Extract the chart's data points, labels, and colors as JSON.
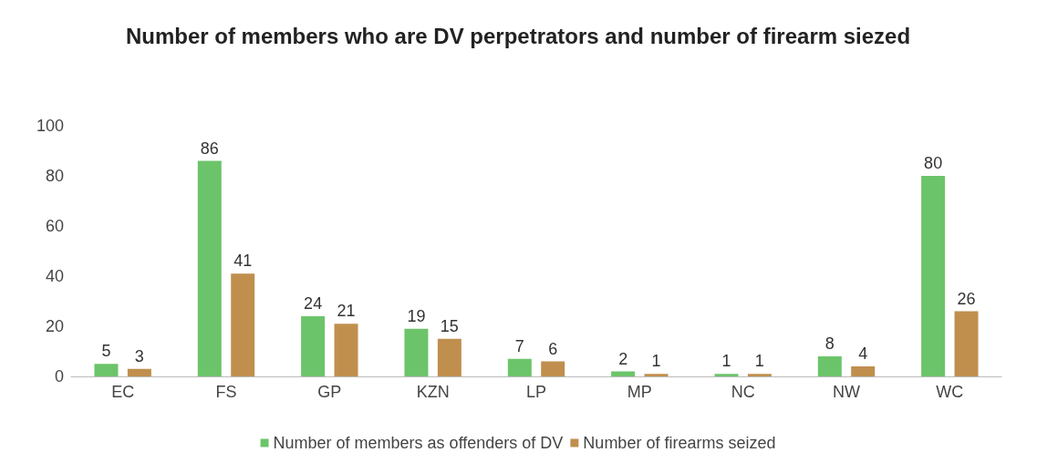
{
  "chart_data": {
    "type": "bar",
    "title": "Number of members who are DV perpetrators and number of firearm siezed",
    "categories": [
      "EC",
      "FS",
      "GP",
      "KZN",
      "LP",
      "MP",
      "NC",
      "NW",
      "WC"
    ],
    "series": [
      {
        "name": "Number of members as offenders of DV",
        "color": "#6cc46a",
        "values": [
          5,
          86,
          24,
          19,
          7,
          2,
          1,
          8,
          80
        ]
      },
      {
        "name": "Number of firearms seized",
        "color": "#c08f4e",
        "values": [
          3,
          41,
          21,
          15,
          6,
          1,
          1,
          4,
          26
        ]
      }
    ],
    "ylim": [
      0,
      100
    ],
    "yticks": [
      0,
      20,
      40,
      60,
      80,
      100
    ],
    "grid": false,
    "legend": "bottom",
    "data_labels": true
  }
}
